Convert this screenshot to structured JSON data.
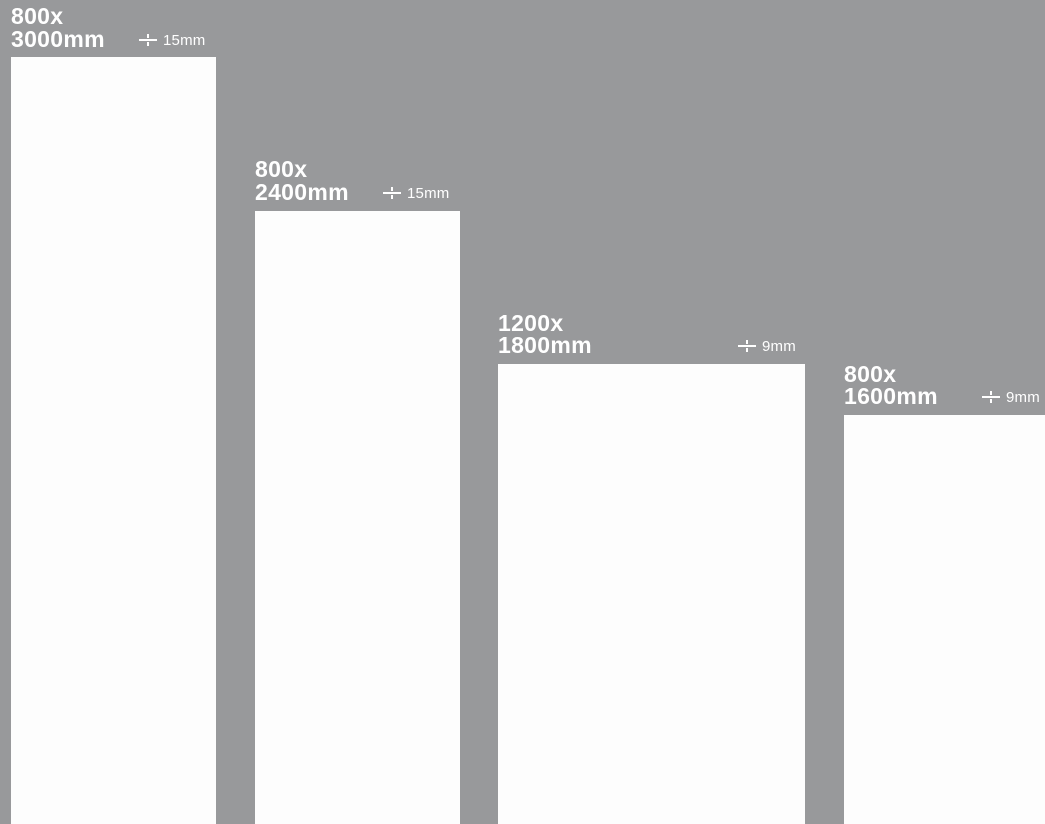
{
  "colors": {
    "background": "#98999b",
    "panel": "#fdfdfd",
    "text": "#ffffff"
  },
  "panels": [
    {
      "width_label": "800x",
      "height_label": "3000mm",
      "thickness_icon": "thickness-icon",
      "thickness_label": "15mm"
    },
    {
      "width_label": "800x",
      "height_label": "2400mm",
      "thickness_icon": "thickness-icon",
      "thickness_label": "15mm"
    },
    {
      "width_label": "1200x",
      "height_label": "1800mm",
      "thickness_icon": "thickness-icon",
      "thickness_label": "9mm"
    },
    {
      "width_label": "800x",
      "height_label": "1600mm",
      "thickness_icon": "thickness-icon",
      "thickness_label": "9mm"
    }
  ]
}
